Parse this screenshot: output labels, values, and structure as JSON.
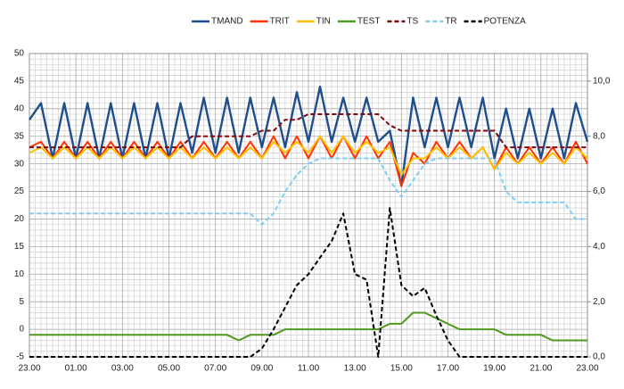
{
  "chart_data": {
    "type": "line",
    "x": [
      0,
      0.5,
      1,
      1.5,
      2,
      2.5,
      3,
      3.5,
      4,
      4.5,
      5,
      5.5,
      6,
      6.5,
      7,
      7.5,
      8,
      8.5,
      9,
      9.5,
      10,
      10.5,
      11,
      11.5,
      12,
      12.5,
      13,
      13.5,
      14,
      14.5,
      15,
      15.5,
      16,
      16.5,
      17,
      17.5,
      18,
      18.5,
      19,
      19.5,
      20,
      20.5,
      21,
      21.5,
      22,
      22.5,
      23,
      23.5,
      24
    ],
    "series": [
      {
        "name": "TMAND",
        "color": "#1f4e8c",
        "dash": false,
        "values": [
          38,
          41,
          31,
          41,
          31,
          41,
          31,
          41,
          31,
          41,
          31,
          41,
          31,
          41,
          32,
          42,
          32,
          42,
          32,
          42,
          33,
          42,
          33,
          43,
          34,
          44,
          34,
          42,
          34,
          42,
          34,
          36,
          26,
          42,
          33,
          42,
          33,
          42,
          33,
          42,
          31,
          40,
          31,
          40,
          31,
          40,
          31,
          41,
          34
        ]
      },
      {
        "name": "TRIT",
        "color": "#ff3300",
        "dash": false,
        "values": [
          33,
          34,
          31,
          34,
          31,
          34,
          31,
          34,
          31,
          34,
          31,
          34,
          31,
          34,
          31,
          34,
          31,
          34,
          31,
          34,
          31,
          35,
          31,
          35,
          31,
          35,
          31,
          35,
          31,
          35,
          31,
          34,
          26,
          32,
          30,
          34,
          31,
          34,
          31,
          33,
          29,
          33,
          30,
          33,
          30,
          33,
          30,
          34,
          30
        ]
      },
      {
        "name": "TIN",
        "color": "#ffc000",
        "dash": false,
        "values": [
          32,
          33,
          31,
          33,
          31,
          33,
          31,
          33,
          31,
          33,
          31,
          33,
          31,
          33,
          31,
          33,
          31,
          33,
          31,
          33,
          31,
          34,
          32,
          34,
          32,
          35,
          32,
          35,
          32,
          34,
          32,
          33,
          28,
          31,
          31,
          33,
          31,
          33,
          31,
          33,
          29,
          32,
          30,
          32,
          30,
          32,
          30,
          33,
          31
        ]
      },
      {
        "name": "TEST",
        "color": "#4e9a1f",
        "dash": false,
        "values": [
          -1,
          -1,
          -1,
          -1,
          -1,
          -1,
          -1,
          -1,
          -1,
          -1,
          -1,
          -1,
          -1,
          -1,
          -1,
          -1,
          -1,
          -1,
          -2,
          -1,
          -1,
          -1,
          0,
          0,
          0,
          0,
          0,
          0,
          0,
          0,
          0,
          1,
          1,
          3,
          3,
          2,
          1,
          0,
          0,
          0,
          0,
          -1,
          -1,
          -1,
          -1,
          -2,
          -2,
          -2,
          -2
        ]
      },
      {
        "name": "TS",
        "color": "#7b0b14",
        "dash": true,
        "values": [
          33,
          33,
          33,
          33,
          33,
          33,
          33,
          33,
          33,
          33,
          33,
          33,
          33,
          33,
          35,
          35,
          35,
          35,
          35,
          35,
          36,
          36,
          38,
          38,
          39,
          39,
          39,
          39,
          39,
          39,
          39,
          37,
          36,
          36,
          36,
          36,
          36,
          36,
          36,
          36,
          36,
          33,
          33,
          33,
          33,
          33,
          33,
          33,
          33
        ]
      },
      {
        "name": "TR",
        "color": "#7fcff5",
        "dash": true,
        "values": [
          21,
          21,
          21,
          21,
          21,
          21,
          21,
          21,
          21,
          21,
          21,
          21,
          21,
          21,
          21,
          21,
          21,
          21,
          21,
          21,
          19,
          21,
          25,
          28,
          30,
          31,
          31,
          31,
          31,
          31,
          31,
          27,
          24,
          27,
          30,
          31,
          31,
          31,
          31,
          31,
          31,
          25,
          23,
          23,
          23,
          23,
          23,
          20,
          20
        ]
      },
      {
        "name": "POTENZA",
        "color": "#000000",
        "dash": true,
        "axis": "y2",
        "values": [
          0,
          0,
          0,
          0,
          0,
          0,
          0,
          0,
          0,
          0,
          0,
          0,
          0,
          0,
          0,
          0,
          0,
          0,
          0,
          0,
          0.3,
          1.0,
          1.8,
          2.6,
          3.0,
          3.6,
          4.2,
          5.2,
          3.0,
          2.8,
          0,
          5.4,
          2.6,
          2.2,
          2.5,
          1.5,
          0.6,
          0,
          0,
          0,
          0,
          0,
          0,
          0,
          0,
          0,
          0,
          0,
          0
        ]
      }
    ],
    "xlim": [
      0,
      24
    ],
    "xticks": [
      {
        "value": 0,
        "label": "23.00"
      },
      {
        "value": 2,
        "label": "01.00"
      },
      {
        "value": 4,
        "label": "03.00"
      },
      {
        "value": 6,
        "label": "05.00"
      },
      {
        "value": 8,
        "label": "07.00"
      },
      {
        "value": 10,
        "label": "09.00"
      },
      {
        "value": 12,
        "label": "11.00"
      },
      {
        "value": 14,
        "label": "13.00"
      },
      {
        "value": 16,
        "label": "15.00"
      },
      {
        "value": 18,
        "label": "17.00"
      },
      {
        "value": 20,
        "label": "19.00"
      },
      {
        "value": 22,
        "label": "21.00"
      },
      {
        "value": 24,
        "label": "23.00"
      }
    ],
    "ylim": [
      -5,
      50
    ],
    "yticks": [
      -5,
      0,
      5,
      10,
      15,
      20,
      25,
      30,
      35,
      40,
      45,
      50
    ],
    "y2lim": [
      0,
      11
    ],
    "y2ticks": [
      {
        "value": 0,
        "label": "0,0"
      },
      {
        "value": 2,
        "label": "2,0"
      },
      {
        "value": 4,
        "label": "4,0"
      },
      {
        "value": 6,
        "label": "6,0"
      },
      {
        "value": 8,
        "label": "8,0"
      },
      {
        "value": 10,
        "label": "10,0"
      }
    ],
    "grid": true,
    "legend": "top"
  }
}
